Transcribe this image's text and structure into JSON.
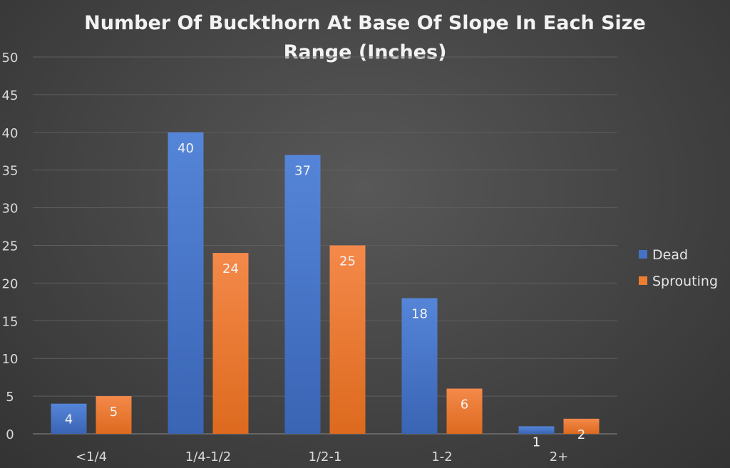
{
  "chart_data": {
    "type": "bar",
    "title_lines": [
      "Number Of Buckthorn At Base Of Slope In Each Size",
      "Range (Inches)"
    ],
    "categories": [
      "<1/4",
      "1/4-1/2",
      "1/2-1",
      "1-2",
      "2+"
    ],
    "series": [
      {
        "name": "Dead",
        "values": [
          4,
          40,
          37,
          18,
          1
        ],
        "color": "#4472c4"
      },
      {
        "name": "Sprouting",
        "values": [
          5,
          24,
          25,
          6,
          2
        ],
        "color": "#ed7d31"
      }
    ],
    "ylim": [
      0,
      50
    ],
    "yticks": [
      0,
      5,
      10,
      15,
      20,
      25,
      30,
      35,
      40,
      45,
      50
    ],
    "grid": true,
    "legend_position": "right",
    "data_labels": true
  }
}
